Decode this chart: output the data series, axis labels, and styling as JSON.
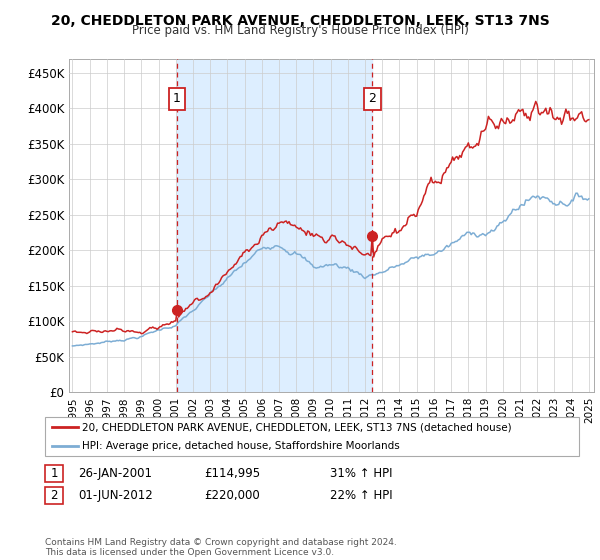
{
  "title": "20, CHEDDLETON PARK AVENUE, CHEDDLETON, LEEK, ST13 7NS",
  "subtitle": "Price paid vs. HM Land Registry's House Price Index (HPI)",
  "ylabel_ticks": [
    "£0",
    "£50K",
    "£100K",
    "£150K",
    "£200K",
    "£250K",
    "£300K",
    "£350K",
    "£400K",
    "£450K"
  ],
  "ytick_values": [
    0,
    50000,
    100000,
    150000,
    200000,
    250000,
    300000,
    350000,
    400000,
    450000
  ],
  "ylim": [
    0,
    470000
  ],
  "xlim_start": 1994.8,
  "xlim_end": 2025.3,
  "sale1_x": 2001.07,
  "sale1_y": 114995,
  "sale1_label": "1",
  "sale2_x": 2012.42,
  "sale2_y": 220000,
  "sale2_label": "2",
  "sale1_date": "26-JAN-2001",
  "sale1_price": "£114,995",
  "sale1_hpi": "31% ↑ HPI",
  "sale2_date": "01-JUN-2012",
  "sale2_price": "£220,000",
  "sale2_hpi": "22% ↑ HPI",
  "legend_line1": "20, CHEDDLETON PARK AVENUE, CHEDDLETON, LEEK, ST13 7NS (detached house)",
  "legend_line2": "HPI: Average price, detached house, Staffordshire Moorlands",
  "footer": "Contains HM Land Registry data © Crown copyright and database right 2024.\nThis data is licensed under the Open Government Licence v3.0.",
  "line_color_red": "#cc2222",
  "line_color_blue": "#7dadd4",
  "shade_color": "#ddeeff",
  "vline_color": "#cc2222",
  "background_color": "#ffffff",
  "grid_color": "#cccccc"
}
